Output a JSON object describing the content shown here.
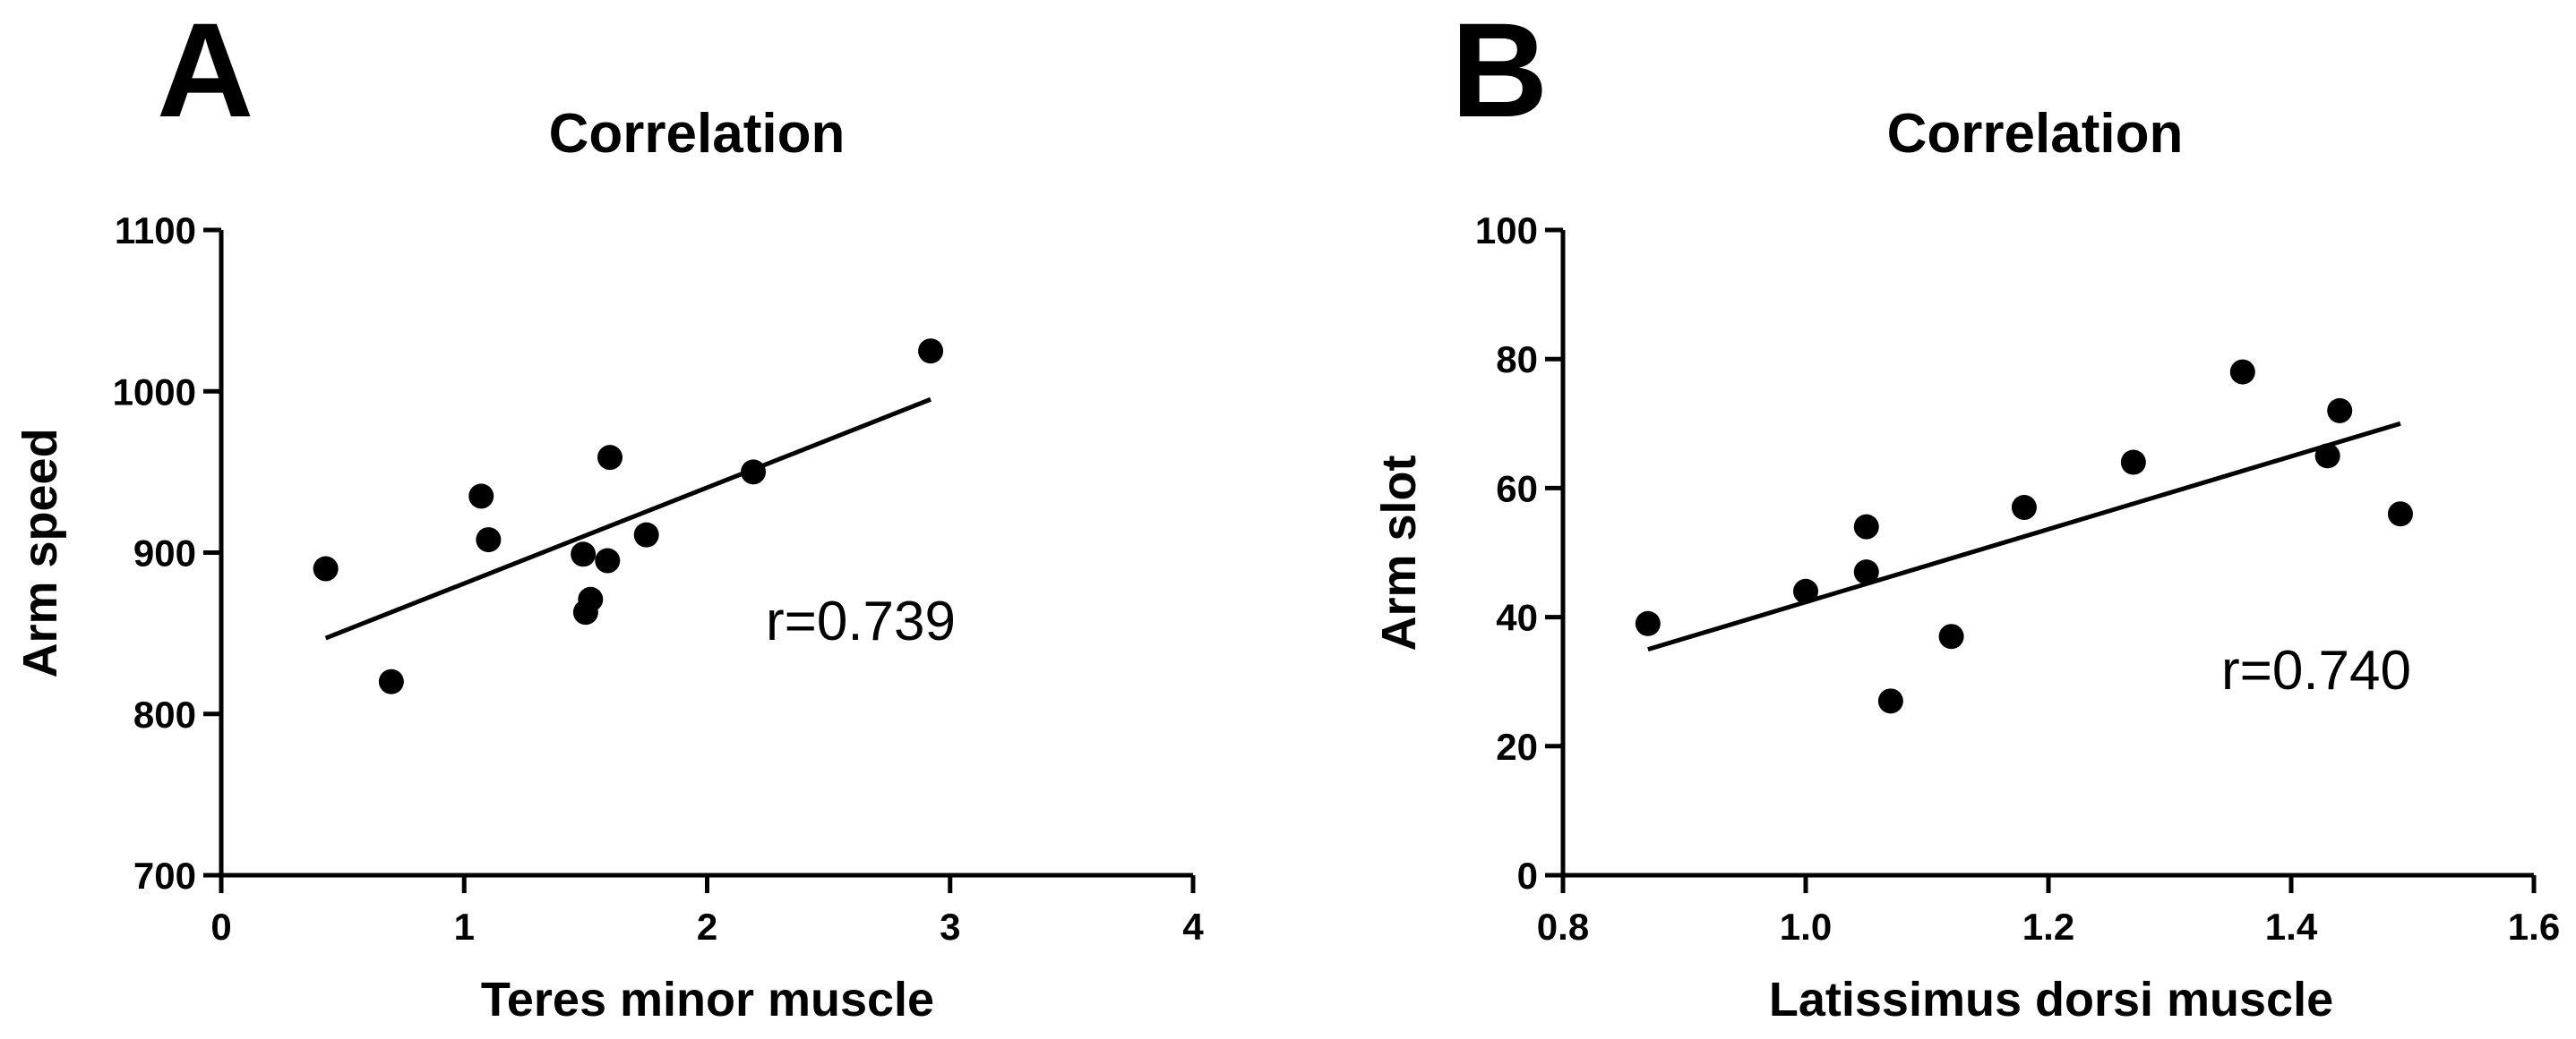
{
  "chart_data": [
    {
      "panel_label": "A",
      "type": "scatter",
      "title": "Correlation",
      "xlabel": "Teres minor muscle",
      "ylabel": "Arm speed",
      "xlim": [
        0,
        4
      ],
      "ylim": [
        700,
        1100
      ],
      "xticks": [
        0,
        1,
        2,
        3,
        4
      ],
      "xtick_labels": [
        "0",
        "1",
        "2",
        "3",
        "4"
      ],
      "yticks": [
        700,
        800,
        900,
        1000,
        1100
      ],
      "ytick_labels": [
        "700",
        "800",
        "900",
        "1000",
        "1100"
      ],
      "points": [
        {
          "x": 0.43,
          "y": 890
        },
        {
          "x": 0.7,
          "y": 820
        },
        {
          "x": 1.07,
          "y": 935
        },
        {
          "x": 1.1,
          "y": 908
        },
        {
          "x": 1.49,
          "y": 899
        },
        {
          "x": 1.5,
          "y": 863
        },
        {
          "x": 1.52,
          "y": 871
        },
        {
          "x": 1.59,
          "y": 895
        },
        {
          "x": 1.6,
          "y": 959
        },
        {
          "x": 1.75,
          "y": 911
        },
        {
          "x": 2.19,
          "y": 950
        },
        {
          "x": 2.92,
          "y": 1025
        }
      ],
      "fit_line": {
        "x": [
          0.43,
          2.92
        ],
        "y": [
          847,
          995
        ]
      },
      "annotation": "r=0.739"
    },
    {
      "panel_label": "B",
      "type": "scatter",
      "title": "Correlation",
      "xlabel": "Latissimus dorsi muscle",
      "ylabel": "Arm slot",
      "xlim": [
        0.8,
        1.6
      ],
      "ylim": [
        0,
        100
      ],
      "xticks": [
        0.8,
        1.0,
        1.2,
        1.4,
        1.6
      ],
      "xtick_labels": [
        "0.8",
        "1.0",
        "1.2",
        "1.4",
        "1.6"
      ],
      "yticks": [
        0,
        20,
        40,
        60,
        80,
        100
      ],
      "ytick_labels": [
        "0",
        "20",
        "40",
        "60",
        "80",
        "100"
      ],
      "points": [
        {
          "x": 0.87,
          "y": 39
        },
        {
          "x": 1.0,
          "y": 44
        },
        {
          "x": 1.05,
          "y": 54
        },
        {
          "x": 1.05,
          "y": 47
        },
        {
          "x": 1.07,
          "y": 27
        },
        {
          "x": 1.12,
          "y": 37
        },
        {
          "x": 1.18,
          "y": 57
        },
        {
          "x": 1.27,
          "y": 64
        },
        {
          "x": 1.36,
          "y": 78
        },
        {
          "x": 1.43,
          "y": 65
        },
        {
          "x": 1.44,
          "y": 72
        },
        {
          "x": 1.49,
          "y": 56
        }
      ],
      "fit_line": {
        "x": [
          0.87,
          1.49
        ],
        "y": [
          35,
          70
        ]
      },
      "annotation": "r=0.740"
    }
  ]
}
